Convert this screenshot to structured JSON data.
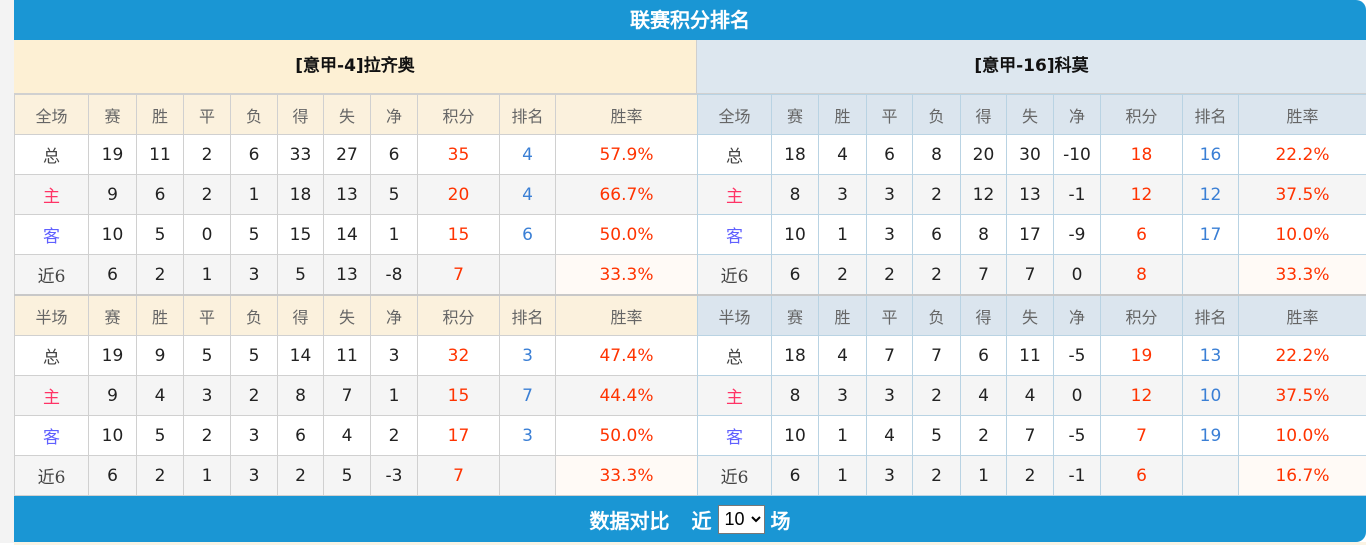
{
  "title": "联赛积分排名",
  "columns": [
    "赛",
    "胜",
    "平",
    "负",
    "得",
    "失",
    "净",
    "积分",
    "排名",
    "胜率"
  ],
  "teams": [
    {
      "name": "[意甲-4]拉齐奥",
      "sections": [
        {
          "label": "全场",
          "rows": [
            [
              "总",
              "19",
              "11",
              "2",
              "6",
              "33",
              "27",
              "6",
              "35",
              "4",
              "57.9%"
            ],
            [
              "主",
              "9",
              "6",
              "2",
              "1",
              "18",
              "13",
              "5",
              "20",
              "4",
              "66.7%"
            ],
            [
              "客",
              "10",
              "5",
              "0",
              "5",
              "15",
              "14",
              "1",
              "15",
              "6",
              "50.0%"
            ],
            [
              "近6",
              "6",
              "2",
              "1",
              "3",
              "5",
              "13",
              "-8",
              "7",
              "",
              "33.3%"
            ]
          ]
        },
        {
          "label": "半场",
          "rows": [
            [
              "总",
              "19",
              "9",
              "5",
              "5",
              "14",
              "11",
              "3",
              "32",
              "3",
              "47.4%"
            ],
            [
              "主",
              "9",
              "4",
              "3",
              "2",
              "8",
              "7",
              "1",
              "15",
              "7",
              "44.4%"
            ],
            [
              "客",
              "10",
              "5",
              "2",
              "3",
              "6",
              "4",
              "2",
              "17",
              "3",
              "50.0%"
            ],
            [
              "近6",
              "6",
              "2",
              "1",
              "3",
              "2",
              "5",
              "-3",
              "7",
              "",
              "33.3%"
            ]
          ]
        }
      ]
    },
    {
      "name": "[意甲-16]科莫",
      "sections": [
        {
          "label": "全场",
          "rows": [
            [
              "总",
              "18",
              "4",
              "6",
              "8",
              "20",
              "30",
              "-10",
              "18",
              "16",
              "22.2%"
            ],
            [
              "主",
              "8",
              "3",
              "3",
              "2",
              "12",
              "13",
              "-1",
              "12",
              "12",
              "37.5%"
            ],
            [
              "客",
              "10",
              "1",
              "3",
              "6",
              "8",
              "17",
              "-9",
              "6",
              "17",
              "10.0%"
            ],
            [
              "近6",
              "6",
              "2",
              "2",
              "2",
              "7",
              "7",
              "0",
              "8",
              "",
              "33.3%"
            ]
          ]
        },
        {
          "label": "半场",
          "rows": [
            [
              "总",
              "18",
              "4",
              "7",
              "7",
              "6",
              "11",
              "-5",
              "19",
              "13",
              "22.2%"
            ],
            [
              "主",
              "8",
              "3",
              "3",
              "2",
              "4",
              "4",
              "0",
              "12",
              "10",
              "37.5%"
            ],
            [
              "客",
              "10",
              "1",
              "4",
              "5",
              "2",
              "7",
              "-5",
              "7",
              "19",
              "10.0%"
            ],
            [
              "近6",
              "6",
              "1",
              "3",
              "2",
              "1",
              "2",
              "-1",
              "6",
              "",
              "16.7%"
            ]
          ]
        }
      ]
    }
  ],
  "compare": {
    "title": "数据对比",
    "prefix": "近",
    "selected": "10",
    "suffix": "场"
  },
  "colors": {
    "accent": "#1a96d4",
    "points": "#ff3300",
    "rank": "#3a7fd5",
    "home": "#ff3366",
    "away": "#6060ff"
  }
}
